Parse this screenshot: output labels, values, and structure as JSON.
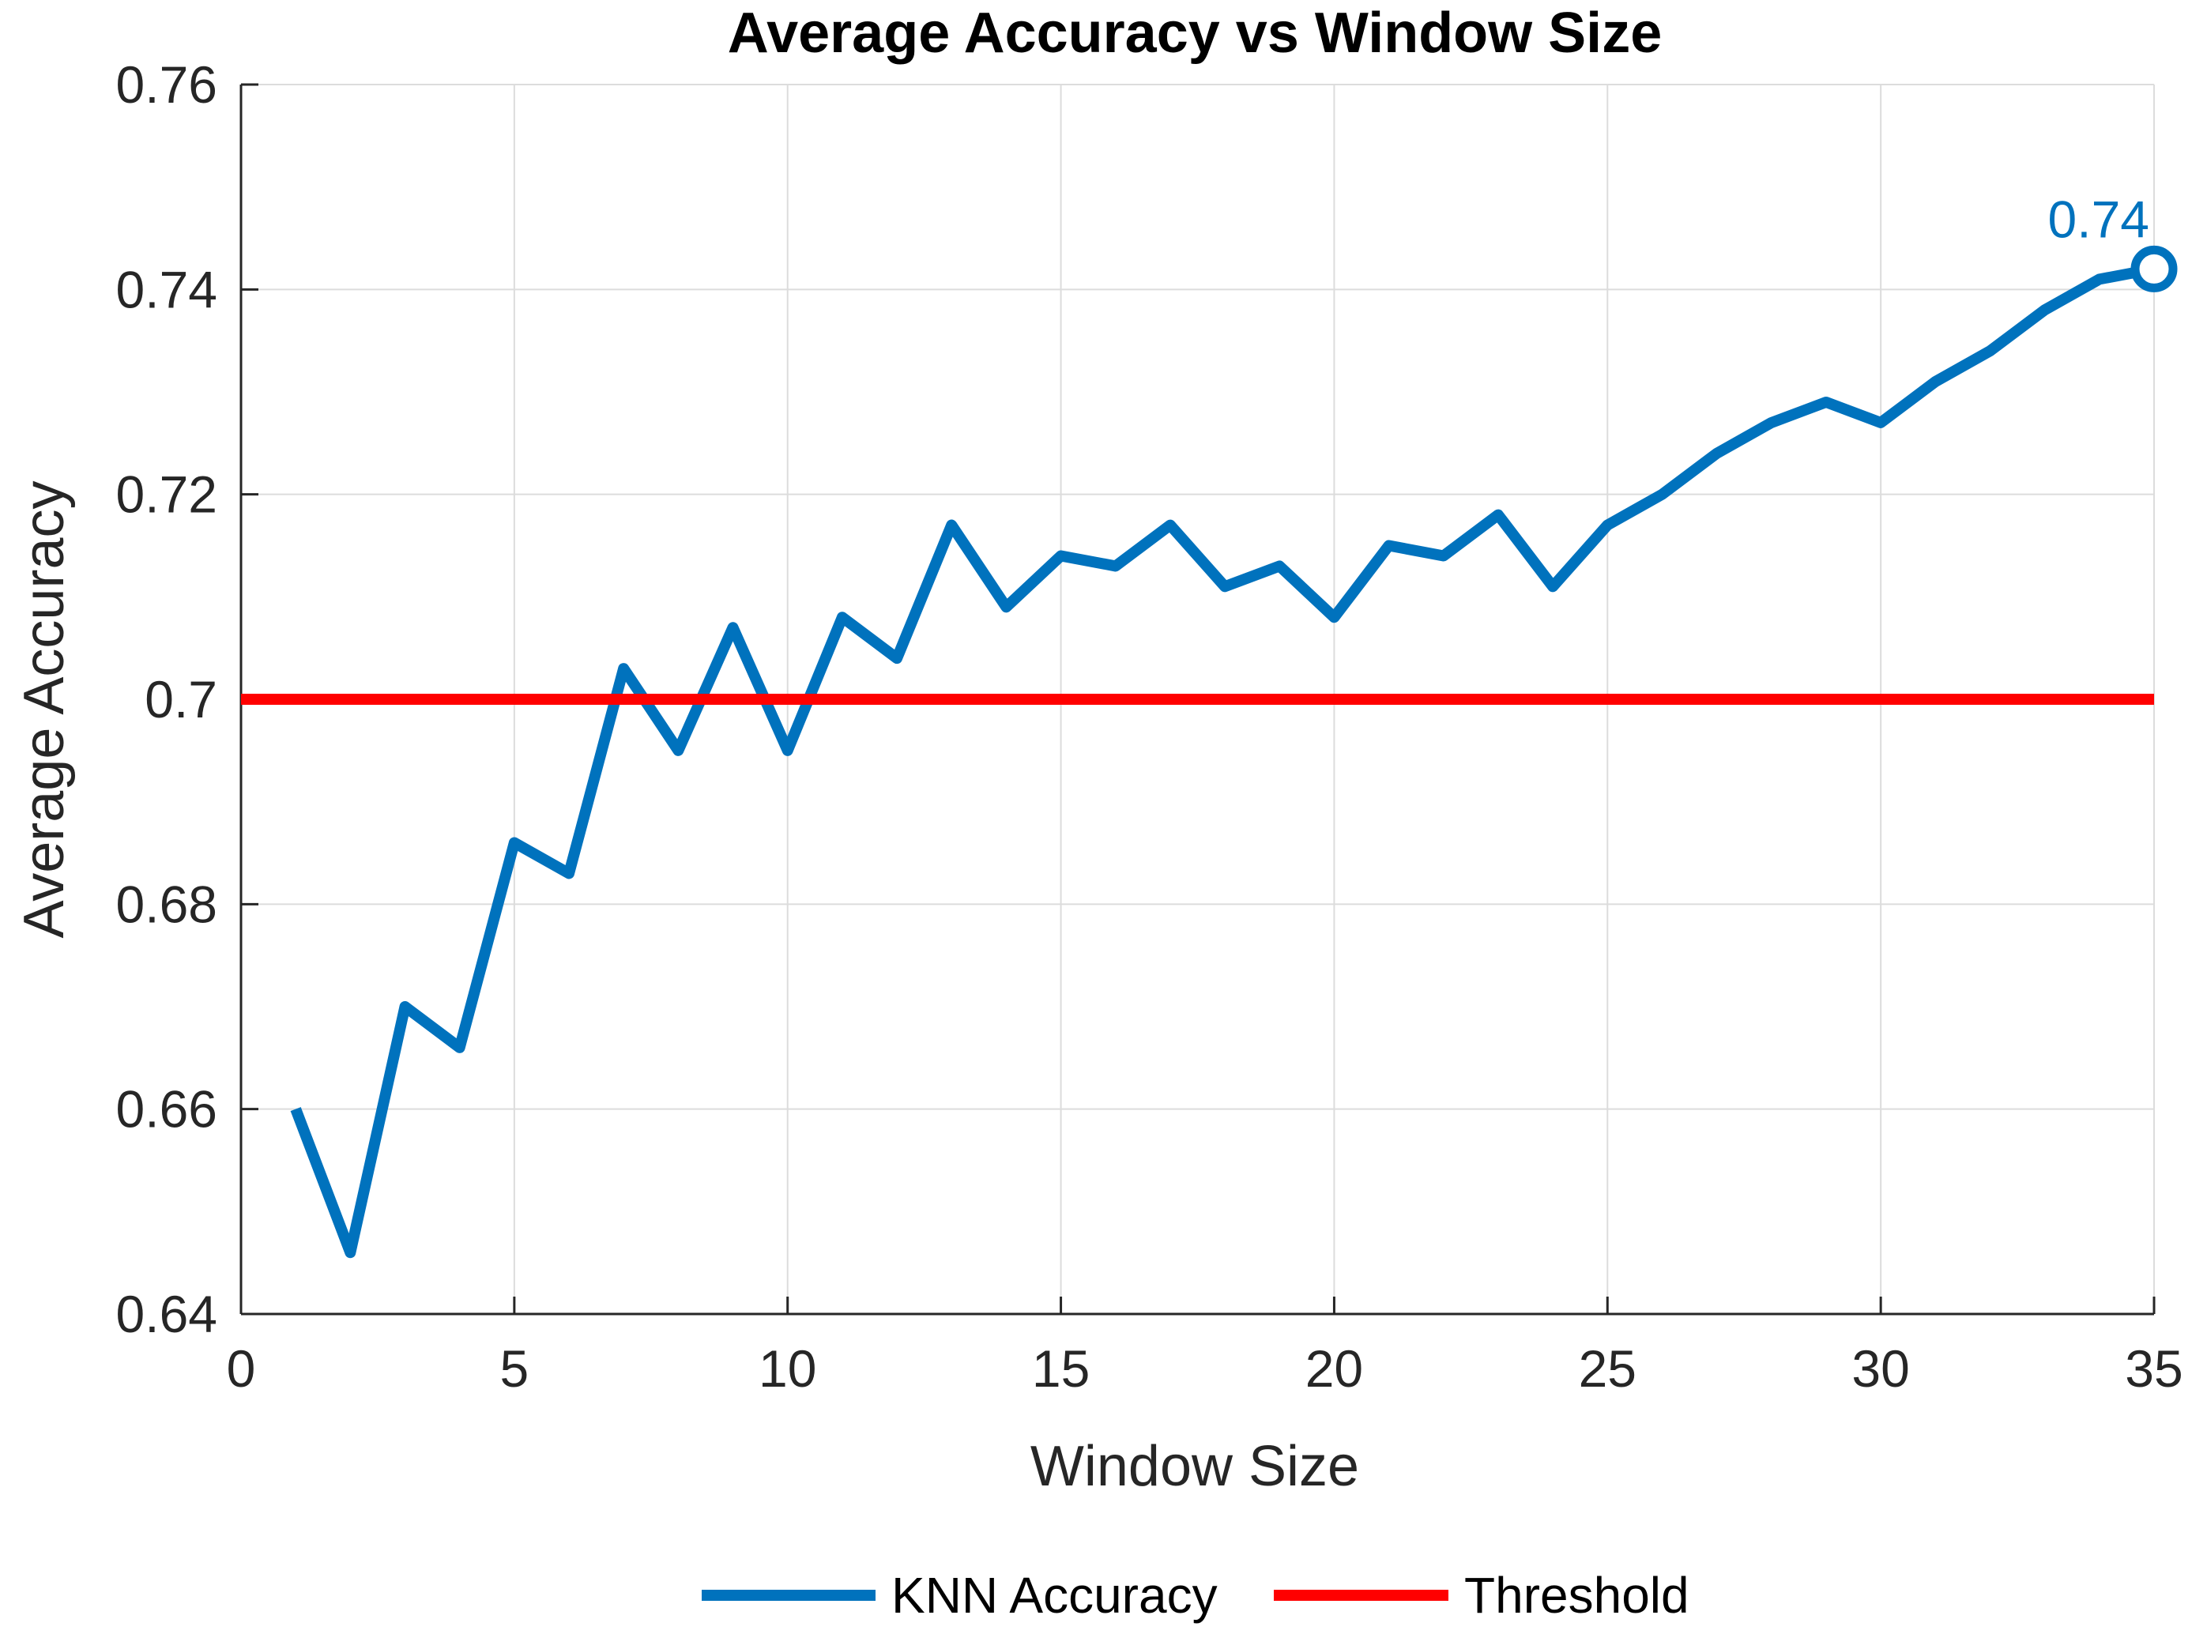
{
  "chart_data": {
    "type": "line",
    "title": "Average Accuracy vs Window Size",
    "xlabel": "Window Size",
    "ylabel": "Average Accuracy",
    "xlim": [
      0,
      35
    ],
    "ylim": [
      0.64,
      0.76
    ],
    "xticks": [
      0,
      5,
      10,
      15,
      20,
      25,
      30,
      35
    ],
    "yticks": [
      0.64,
      0.66,
      0.68,
      0.7,
      0.72,
      0.74,
      0.76
    ],
    "xtick_labels": [
      "0",
      "5",
      "10",
      "15",
      "20",
      "25",
      "30",
      "35"
    ],
    "ytick_labels": [
      "0.64",
      "0.66",
      "0.68",
      "0.7",
      "0.72",
      "0.74",
      "0.76"
    ],
    "grid": true,
    "legend_position": "bottom",
    "series": [
      {
        "name": "KNN Accuracy",
        "color": "#0072BD",
        "x": [
          1,
          2,
          3,
          4,
          5,
          6,
          7,
          8,
          9,
          10,
          11,
          12,
          13,
          14,
          15,
          16,
          17,
          18,
          19,
          20,
          21,
          22,
          23,
          24,
          25,
          26,
          27,
          28,
          29,
          30,
          31,
          32,
          33,
          34,
          35
        ],
        "y": [
          0.66,
          0.646,
          0.67,
          0.666,
          0.686,
          0.683,
          0.703,
          0.695,
          0.707,
          0.695,
          0.708,
          0.704,
          0.717,
          0.709,
          0.714,
          0.713,
          0.717,
          0.711,
          0.713,
          0.708,
          0.715,
          0.714,
          0.718,
          0.711,
          0.717,
          0.72,
          0.724,
          0.727,
          0.729,
          0.727,
          0.731,
          0.734,
          0.738,
          0.741,
          0.742
        ]
      },
      {
        "name": "Threshold",
        "color": "#FF0000",
        "x": [
          0,
          35
        ],
        "y": [
          0.7,
          0.7
        ]
      }
    ],
    "annotations": [
      {
        "text": "0.74",
        "x": 35,
        "y": 0.742,
        "marker": "circle",
        "color": "#0072BD"
      }
    ]
  }
}
